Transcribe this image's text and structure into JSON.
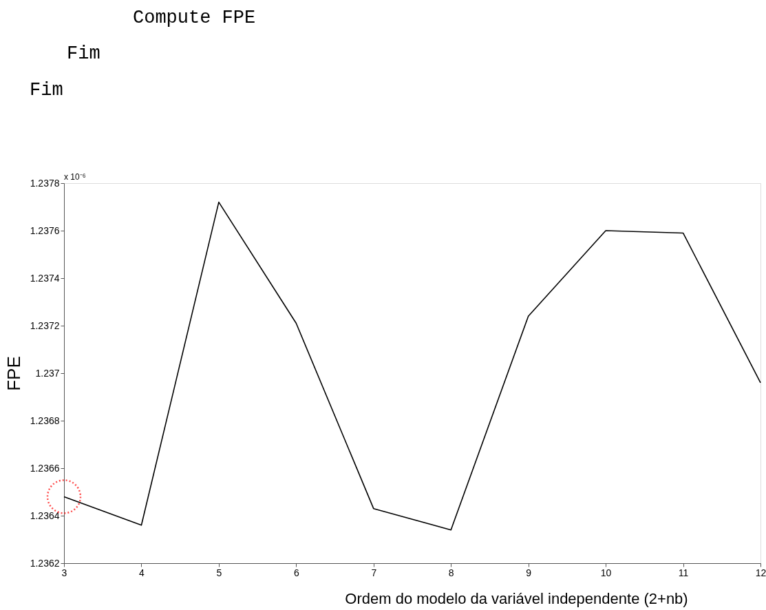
{
  "chart_data": {
    "type": "line",
    "xlabel": "Ordem do modelo da variável independente (2+nb)",
    "ylabel": "FPE",
    "annotations": [
      "Compute FPE",
      "Fim",
      "Fim",
      "x 10⁻⁶"
    ],
    "x": [
      3,
      4,
      5,
      6,
      7,
      8,
      9,
      10,
      11,
      12
    ],
    "series": [
      {
        "color": "#000000",
        "values": [
          1.23648,
          1.23636,
          1.23772,
          1.23721,
          1.23643,
          1.23634,
          1.23724,
          1.2376,
          1.23759,
          1.23696
        ]
      }
    ],
    "xlim": [
      3,
      12
    ],
    "xticks": [
      3,
      4,
      5,
      6,
      7,
      8,
      9,
      10,
      11,
      12
    ],
    "ylim": [
      1.2362,
      1.2378
    ],
    "yticks": [
      1.2362,
      1.2364,
      1.2366,
      1.2368,
      1.237,
      1.2372,
      1.2374,
      1.2376,
      1.2378
    ],
    "grid": false,
    "legend": false,
    "marker": "none",
    "line_style": "solid"
  }
}
